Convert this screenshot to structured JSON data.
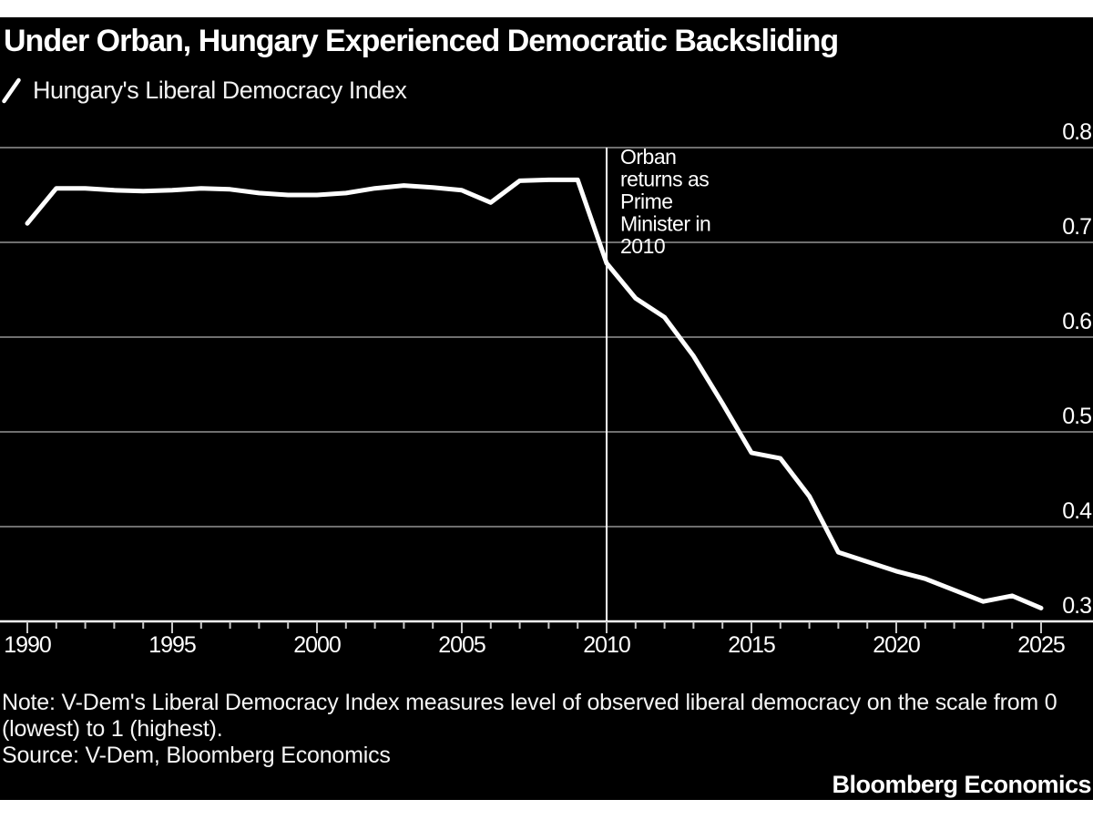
{
  "header": {
    "title": "Under Orban, Hungary Experienced Democratic Backsliding",
    "legend_label": "Hungary's Liberal Democracy Index"
  },
  "chart_data": {
    "type": "line",
    "title": "Under Orban, Hungary Experienced Democratic Backsliding",
    "legend": "Hungary's Liberal Democracy Index",
    "legend_position": "top-left",
    "grid": "horizontal",
    "xlim": [
      1990,
      2025
    ],
    "ylim": [
      0.3,
      0.8
    ],
    "y_ticks": [
      0.8,
      0.7,
      0.6,
      0.5,
      0.4,
      0.3
    ],
    "x_tick_labels": [
      1990,
      1995,
      2000,
      2005,
      2010,
      2015,
      2020,
      2025
    ],
    "x": [
      1990,
      1991,
      1992,
      1993,
      1994,
      1995,
      1996,
      1997,
      1998,
      1999,
      2000,
      2001,
      2002,
      2003,
      2004,
      2005,
      2006,
      2007,
      2008,
      2009,
      2010,
      2011,
      2012,
      2013,
      2014,
      2015,
      2016,
      2017,
      2018,
      2019,
      2020,
      2021,
      2022,
      2023,
      2024,
      2025
    ],
    "series": [
      {
        "name": "Hungary's Liberal Democracy Index",
        "color": "#ffffff",
        "values": [
          0.72,
          0.757,
          0.757,
          0.755,
          0.754,
          0.755,
          0.757,
          0.756,
          0.752,
          0.75,
          0.75,
          0.752,
          0.757,
          0.76,
          0.758,
          0.755,
          0.742,
          0.765,
          0.766,
          0.766,
          0.678,
          0.641,
          0.621,
          0.58,
          0.53,
          0.478,
          0.472,
          0.432,
          0.373,
          0.363,
          0.353,
          0.345,
          0.333,
          0.321,
          0.327,
          0.314
        ]
      }
    ],
    "annotation": {
      "x": 2010,
      "text": "Orban returns as Prime Minister in 2010",
      "lines": [
        "Orban",
        "returns as",
        "Prime",
        "Minister in",
        "2010"
      ]
    },
    "colors": {
      "background": "#000000",
      "line": "#ffffff",
      "gridline": "#6f6f6f",
      "axis_baseline": "#ffffff",
      "tick": "#c8c8c8",
      "text": "#ffffff"
    }
  },
  "footer": {
    "note": "Note: V-Dem's Liberal Democracy Index measures level of observed liberal democracy on the scale from 0 (lowest) to 1 (highest).",
    "source": "Source: V-Dem, Bloomberg Economics",
    "brand": "Bloomberg Economics"
  }
}
